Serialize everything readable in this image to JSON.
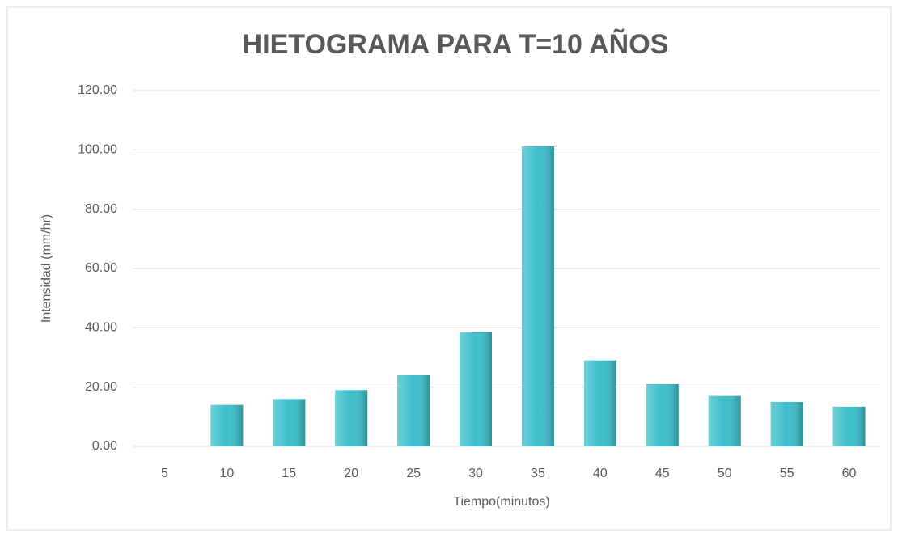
{
  "chart_data": {
    "type": "bar",
    "title": "HIETOGRAMA PARA T=10 AÑOS",
    "xlabel": "Tiempo(minutos)",
    "ylabel": "Intensidad  (mm/hr)",
    "categories": [
      "5",
      "10",
      "15",
      "20",
      "25",
      "30",
      "35",
      "40",
      "45",
      "50",
      "55",
      "60"
    ],
    "values": [
      0,
      14,
      16,
      19,
      24,
      38.5,
      101.2,
      29,
      21,
      17,
      15,
      13.4
    ],
    "color": "#3cbfcb",
    "ylim": [
      0,
      120
    ],
    "yticks": [
      {
        "value": 0,
        "label": "0.00"
      },
      {
        "value": 20,
        "label": "20.00"
      },
      {
        "value": 40,
        "label": "40.00"
      },
      {
        "value": 60,
        "label": "60.00"
      },
      {
        "value": 80,
        "label": "80.00"
      },
      {
        "value": 100,
        "label": "100.00"
      },
      {
        "value": 120,
        "label": "120.00"
      }
    ],
    "grid": true
  }
}
